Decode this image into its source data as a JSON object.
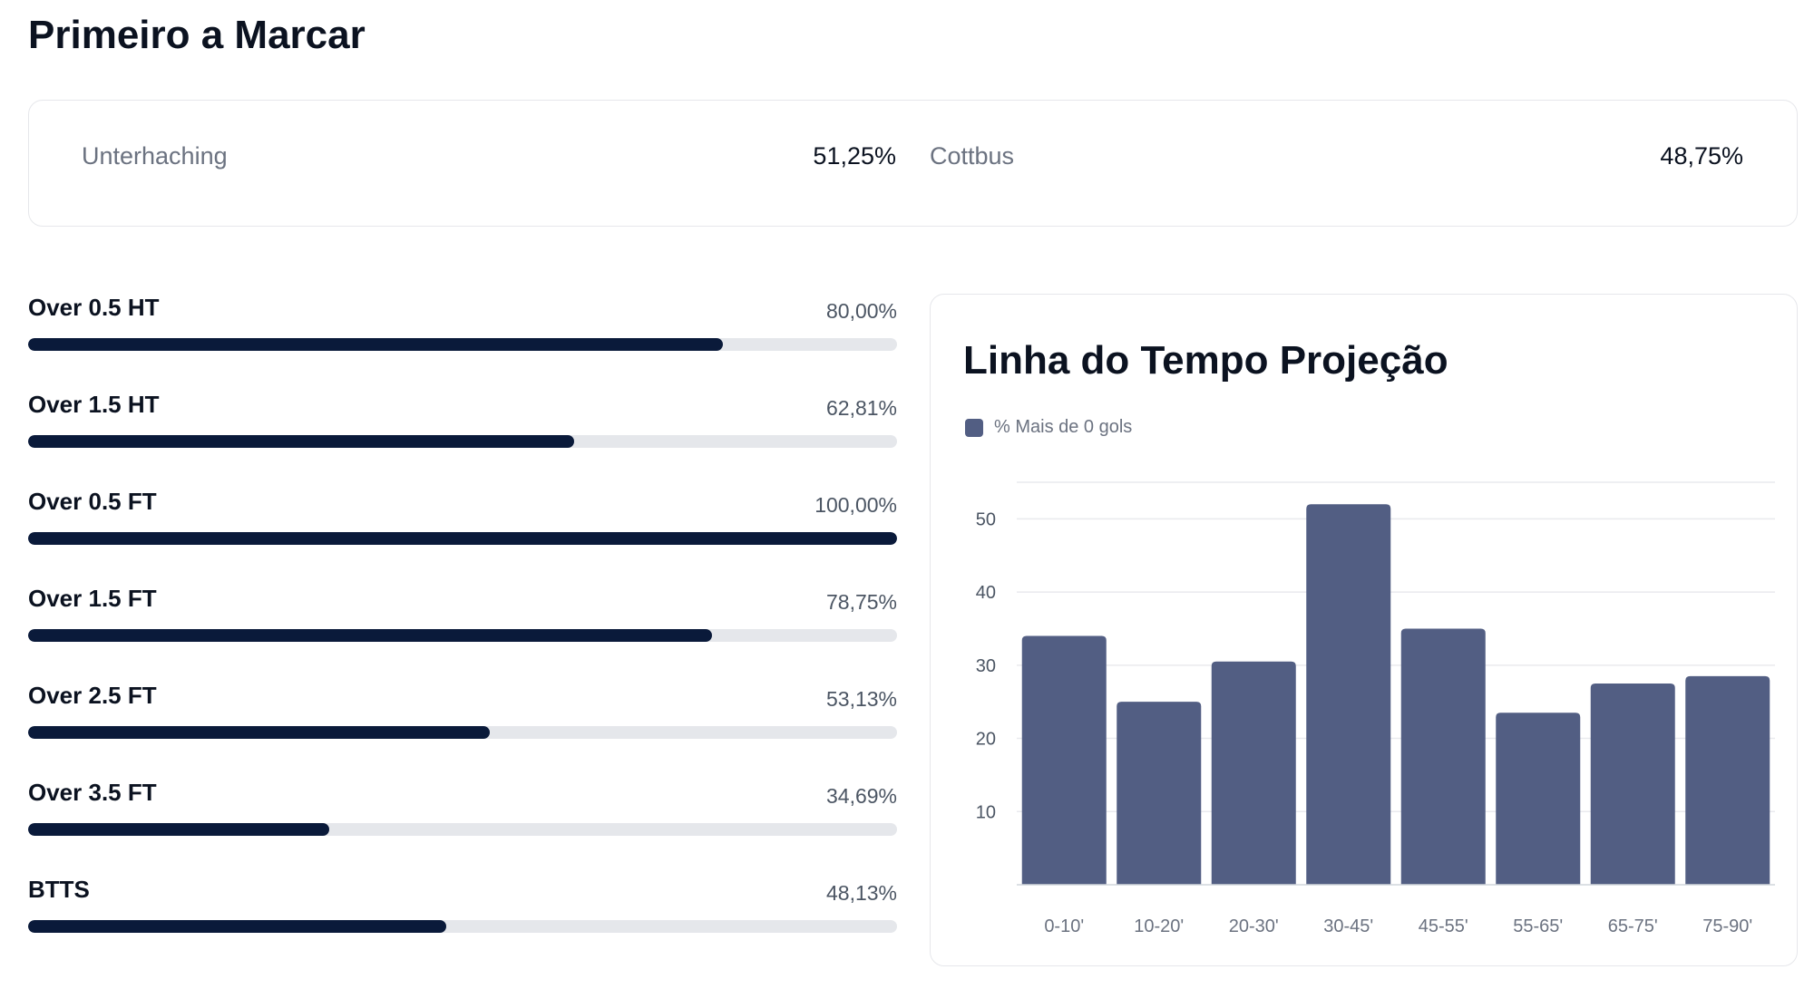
{
  "page": {
    "title": "Primeiro a Marcar"
  },
  "first_scorer": {
    "home": {
      "name": "Unterhaching",
      "pct": "51,25%"
    },
    "away": {
      "name": "Cottbus",
      "pct": "48,75%"
    }
  },
  "metrics": [
    {
      "label": "Over 0.5 HT",
      "value": "80,00%",
      "percent": 80.0
    },
    {
      "label": "Over 1.5 HT",
      "value": "62,81%",
      "percent": 62.81
    },
    {
      "label": "Over 0.5 FT",
      "value": "100,00%",
      "percent": 100.0
    },
    {
      "label": "Over 1.5 FT",
      "value": "78,75%",
      "percent": 78.75
    },
    {
      "label": "Over 2.5 FT",
      "value": "53,13%",
      "percent": 53.13
    },
    {
      "label": "Over 3.5 FT",
      "value": "34,69%",
      "percent": 34.69
    },
    {
      "label": "BTTS",
      "value": "48,13%",
      "percent": 48.13
    }
  ],
  "colors": {
    "bar_fill": "#0a1a3a",
    "track": "#e5e7eb",
    "chart_bar": "#525e83",
    "grid": "#e9eaee"
  },
  "chart_data": {
    "type": "bar",
    "title": "Linha do Tempo Projeção",
    "categories": [
      "0-10'",
      "10-20'",
      "20-30'",
      "30-45'",
      "45-55'",
      "55-65'",
      "65-75'",
      "75-90'"
    ],
    "series": [
      {
        "name": "% Mais de 0 gols",
        "values": [
          34,
          25,
          30.5,
          52,
          35,
          23.5,
          27.5,
          28.5
        ]
      }
    ],
    "yticks": [
      10,
      20,
      30,
      40,
      50
    ],
    "ylim": [
      0,
      55
    ],
    "grid": true,
    "legend": "top-left"
  }
}
